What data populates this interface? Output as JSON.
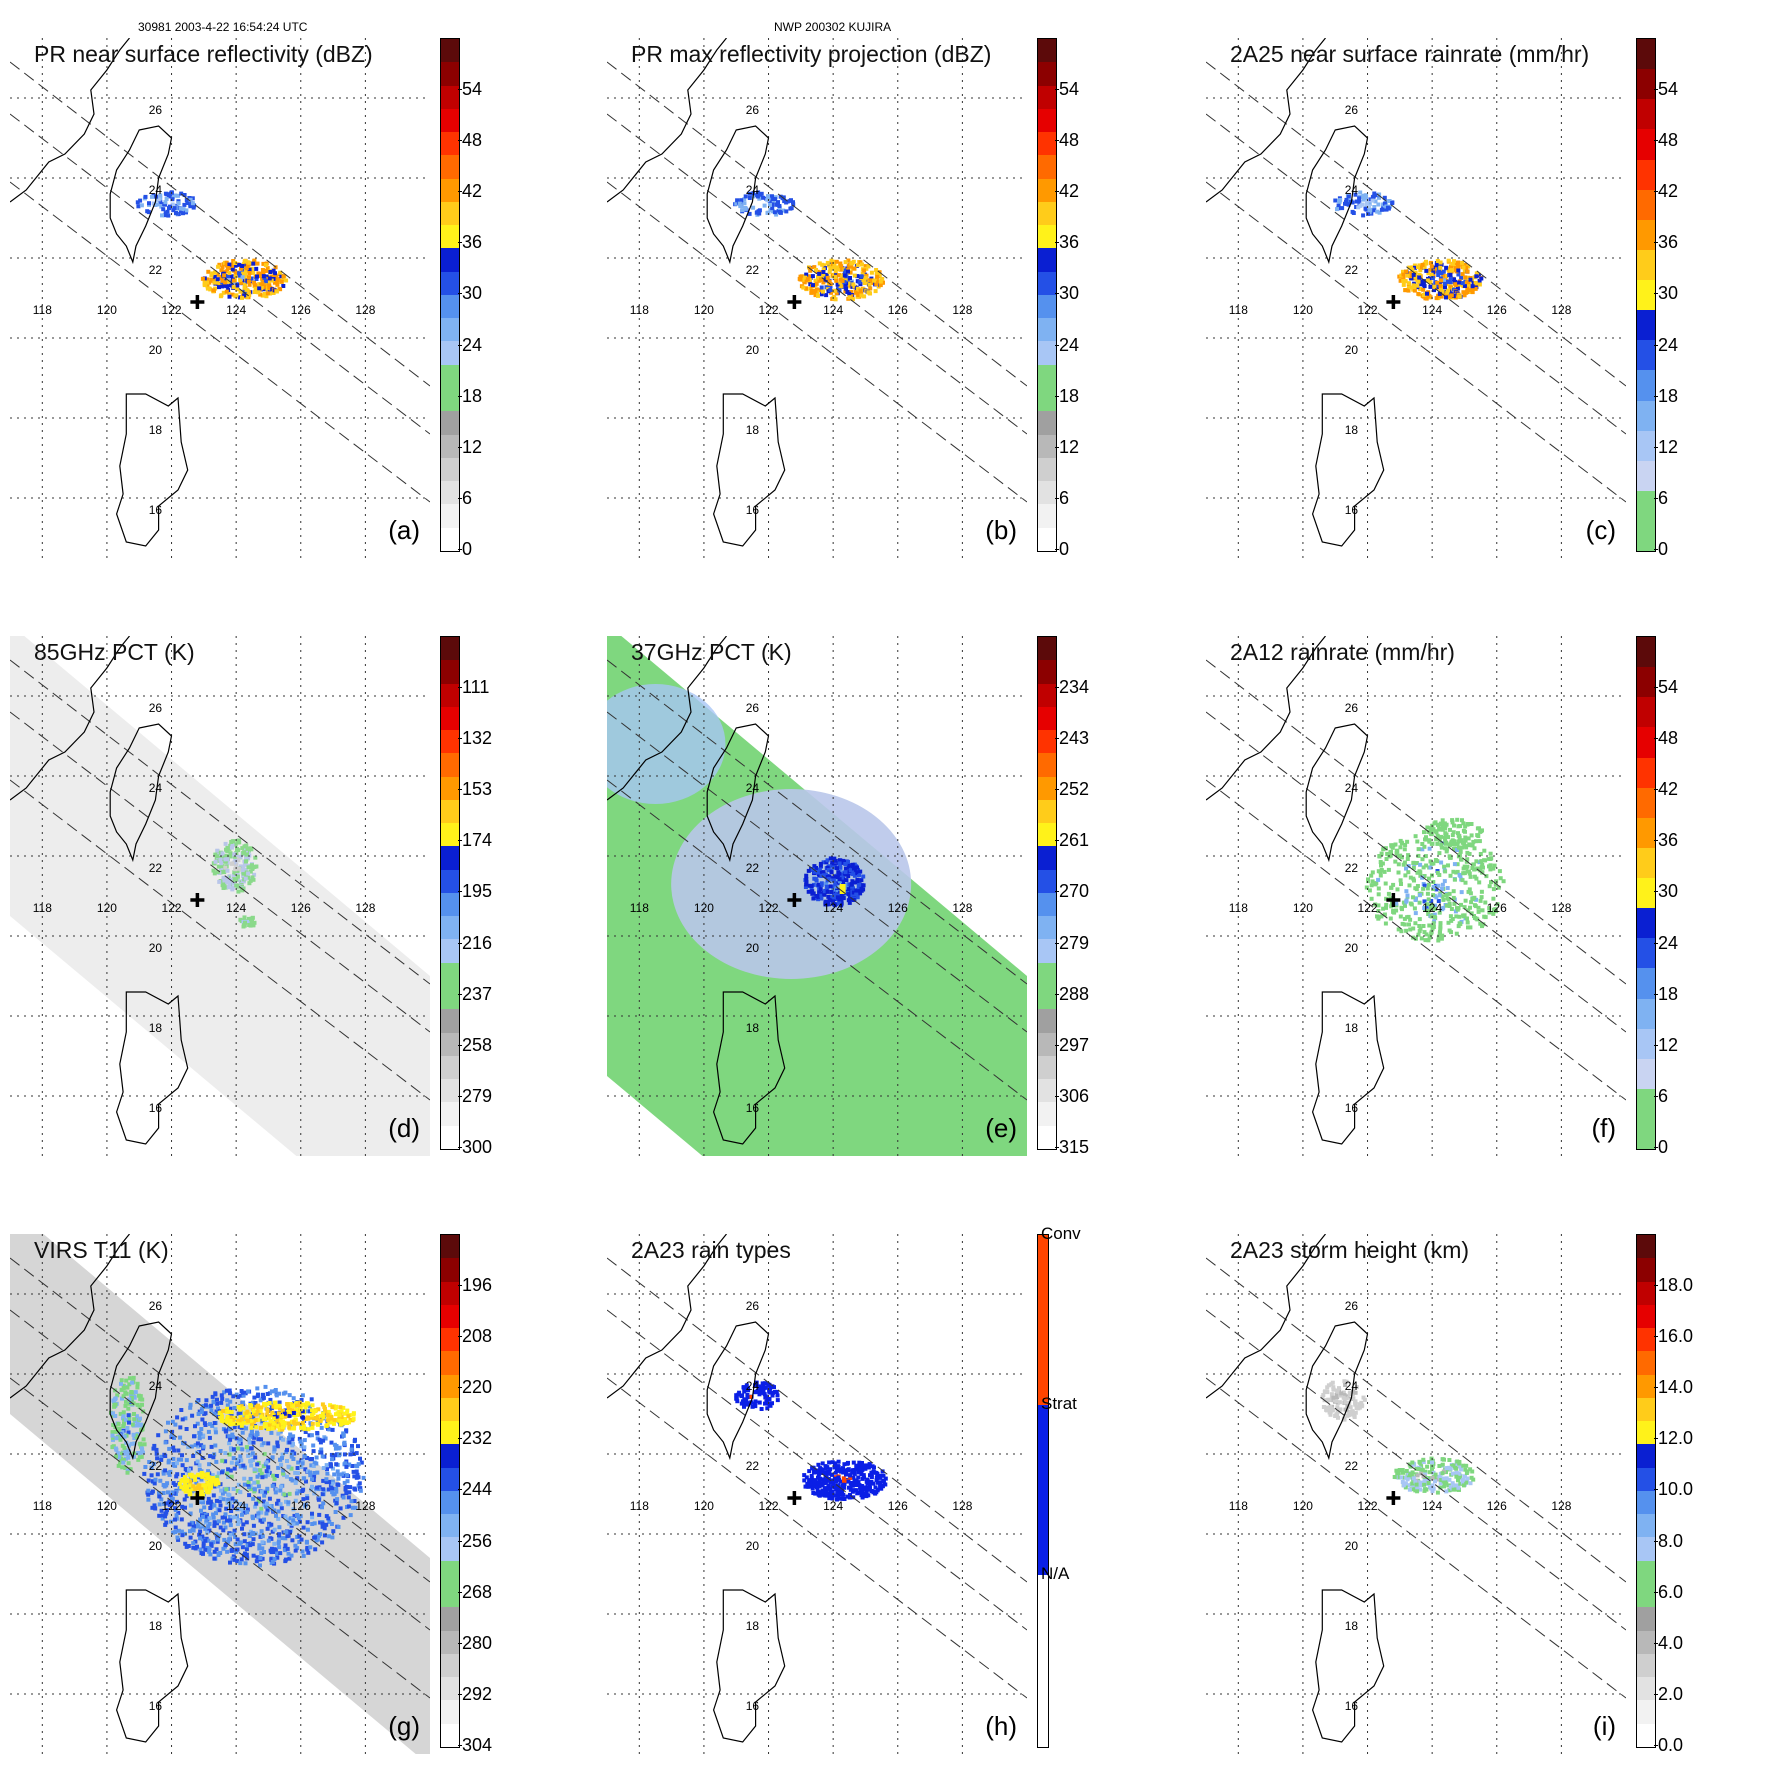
{
  "header": {
    "left": "30981 2003-4-22 16:54:24 UTC",
    "center": "NWP 200302 KUJIRA"
  },
  "map": {
    "lon_labels": [
      "118",
      "120",
      "122",
      "124",
      "126",
      "128"
    ],
    "lat_labels": [
      "26",
      "24",
      "22",
      "20",
      "18",
      "16"
    ]
  },
  "panels": [
    {
      "id": "a",
      "title": "PR near surface reflectivity (dBZ)",
      "label": "(a)",
      "field": "pr",
      "colorbar": {
        "ticks": [
          "54",
          "48",
          "42",
          "36",
          "30",
          "24",
          "18",
          "12",
          "6",
          "0"
        ],
        "scheme": "dbz"
      }
    },
    {
      "id": "b",
      "title": "PR max reflectivity projection (dBZ)",
      "label": "(b)",
      "field": "pr",
      "colorbar": {
        "ticks": [
          "54",
          "48",
          "42",
          "36",
          "30",
          "24",
          "18",
          "12",
          "6",
          "0"
        ],
        "scheme": "dbz"
      }
    },
    {
      "id": "c",
      "title": "2A25 near surface rainrate (mm/hr)",
      "label": "(c)",
      "field": "pr",
      "colorbar": {
        "ticks": [
          "54",
          "48",
          "42",
          "36",
          "30",
          "24",
          "18",
          "12",
          "6",
          "0"
        ],
        "scheme": "rain"
      }
    },
    {
      "id": "d",
      "title": "85GHz PCT (K)",
      "label": "(d)",
      "field": "tmi85",
      "colorbar": {
        "ticks": [
          "111",
          "132",
          "153",
          "174",
          "195",
          "216",
          "237",
          "258",
          "279",
          "300"
        ],
        "scheme": "pct"
      }
    },
    {
      "id": "e",
      "title": "37GHz PCT (K)",
      "label": "(e)",
      "field": "tmi37",
      "colorbar": {
        "ticks": [
          "234",
          "243",
          "252",
          "261",
          "270",
          "279",
          "288",
          "297",
          "306",
          "315"
        ],
        "scheme": "pct"
      }
    },
    {
      "id": "f",
      "title": "2A12 rainrate (mm/hr)",
      "label": "(f)",
      "field": "tmirain",
      "colorbar": {
        "ticks": [
          "54",
          "48",
          "42",
          "36",
          "30",
          "24",
          "18",
          "12",
          "6",
          "0"
        ],
        "scheme": "rain"
      }
    },
    {
      "id": "g",
      "title": "VIRS T11 (K)",
      "label": "(g)",
      "field": "virs",
      "colorbar": {
        "ticks": [
          "196",
          "208",
          "220",
          "232",
          "244",
          "256",
          "268",
          "280",
          "292",
          "304"
        ],
        "scheme": "pct"
      }
    },
    {
      "id": "h",
      "title": "2A23 rain types",
      "label": "(h)",
      "field": "raintype",
      "colorbar": {
        "categories": [
          "Conv",
          "Strat",
          "N/A"
        ],
        "scheme": "types"
      }
    },
    {
      "id": "i",
      "title": "2A23 storm height (km)",
      "label": "(i)",
      "field": "height",
      "colorbar": {
        "ticks": [
          "18.0",
          "16.0",
          "14.0",
          "12.0",
          "10.0",
          "8.0",
          "6.0",
          "4.0",
          "2.0",
          "0.0"
        ],
        "scheme": "height"
      }
    }
  ],
  "colors": {
    "gray_ramp": [
      "#ffffff",
      "#f2f2f2",
      "#e2e2e2",
      "#cfcfcf",
      "#b8b8b8",
      "#a0a0a0"
    ],
    "green": "#7fd77f",
    "light_blue": [
      "#c9d4f2",
      "#a8c6f5",
      "#7fb2f2",
      "#5591ee"
    ],
    "blue": [
      "#2450e6",
      "#0a1fd2"
    ],
    "yellow": "#fff21a",
    "orange": [
      "#ffcc1a",
      "#ff9900",
      "#ff6a00"
    ],
    "red": [
      "#ff3300",
      "#e60000",
      "#c00000",
      "#8c0000",
      "#5c0a0a"
    ],
    "conv": "#ff4500",
    "strat": "#0a1fe6",
    "na": "#ffffff"
  }
}
